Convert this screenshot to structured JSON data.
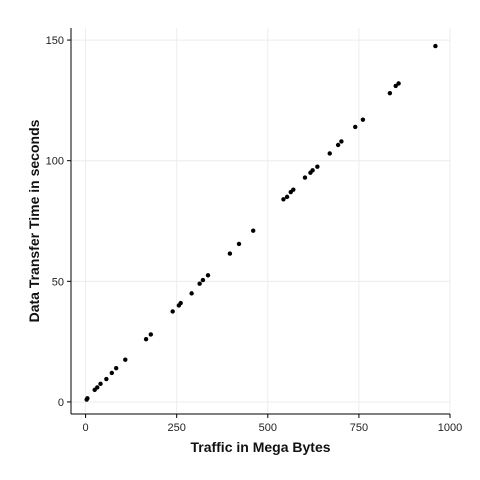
{
  "chart_data": {
    "type": "scatter",
    "title": "",
    "xlabel": "Traffic in Mega Bytes",
    "ylabel": "Data Transfer Time in seconds",
    "xlim": [
      -40,
      1000
    ],
    "ylim": [
      -5,
      155
    ],
    "x_ticks": [
      0,
      250,
      500,
      750,
      1000
    ],
    "y_ticks": [
      0,
      50,
      100,
      150
    ],
    "grid": true,
    "legend": "none",
    "point_color": "#000000",
    "points": [
      {
        "x": 3,
        "y": 1
      },
      {
        "x": 5,
        "y": 1.5
      },
      {
        "x": 25,
        "y": 5
      },
      {
        "x": 32,
        "y": 6
      },
      {
        "x": 41,
        "y": 7.5
      },
      {
        "x": 57,
        "y": 9.5
      },
      {
        "x": 72,
        "y": 12
      },
      {
        "x": 84,
        "y": 14
      },
      {
        "x": 109,
        "y": 17.5
      },
      {
        "x": 166,
        "y": 26
      },
      {
        "x": 179,
        "y": 28
      },
      {
        "x": 239,
        "y": 37.5
      },
      {
        "x": 256,
        "y": 40
      },
      {
        "x": 261,
        "y": 41
      },
      {
        "x": 291,
        "y": 45
      },
      {
        "x": 313,
        "y": 49
      },
      {
        "x": 322,
        "y": 50.5
      },
      {
        "x": 336,
        "y": 52.5
      },
      {
        "x": 396,
        "y": 61.5
      },
      {
        "x": 421,
        "y": 65.5
      },
      {
        "x": 460,
        "y": 71
      },
      {
        "x": 543,
        "y": 84
      },
      {
        "x": 553,
        "y": 85
      },
      {
        "x": 563,
        "y": 87
      },
      {
        "x": 570,
        "y": 88
      },
      {
        "x": 602,
        "y": 93
      },
      {
        "x": 617,
        "y": 95
      },
      {
        "x": 623,
        "y": 96
      },
      {
        "x": 636,
        "y": 97.5
      },
      {
        "x": 670,
        "y": 103
      },
      {
        "x": 693,
        "y": 106.5
      },
      {
        "x": 702,
        "y": 108
      },
      {
        "x": 740,
        "y": 114
      },
      {
        "x": 761,
        "y": 117
      },
      {
        "x": 835,
        "y": 128
      },
      {
        "x": 851,
        "y": 131
      },
      {
        "x": 859,
        "y": 132
      },
      {
        "x": 960,
        "y": 147.5
      }
    ]
  }
}
